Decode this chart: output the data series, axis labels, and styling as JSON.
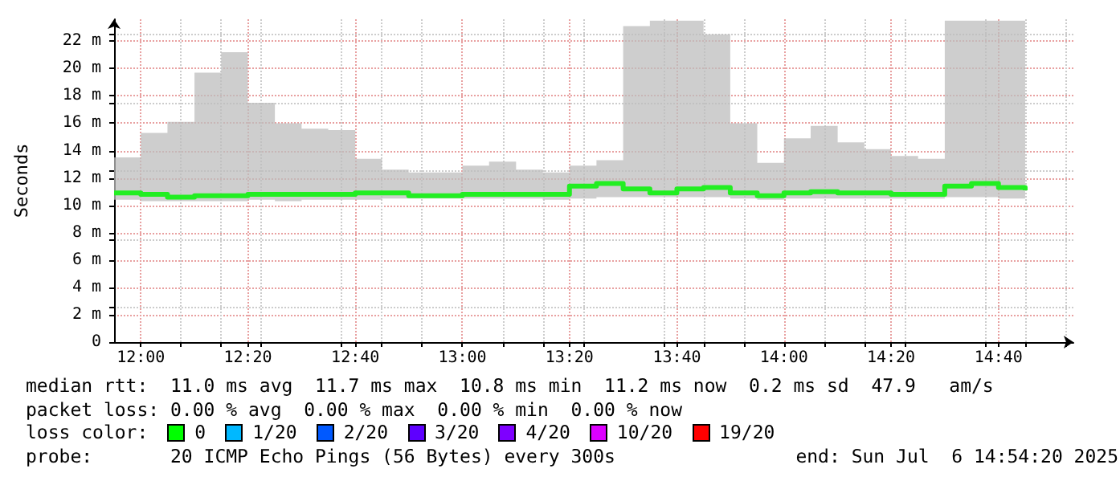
{
  "chart_data": {
    "type": "step",
    "ylabel": "Seconds",
    "x": [
      11.917,
      12.0,
      12.083,
      12.167,
      12.25,
      12.333,
      12.417,
      12.5,
      12.583,
      12.667,
      12.75,
      12.833,
      12.917,
      13.0,
      13.083,
      13.167,
      13.25,
      13.333,
      13.417,
      13.5,
      13.583,
      13.667,
      13.75,
      13.833,
      13.917,
      14.0,
      14.083,
      14.167,
      14.25,
      14.333,
      14.417,
      14.5,
      14.583,
      14.667,
      14.75
    ],
    "series": [
      {
        "color": "#22ee22",
        "values": [
          10.9,
          10.8,
          10.6,
          10.7,
          10.7,
          10.8,
          10.8,
          10.8,
          10.8,
          10.9,
          10.9,
          10.7,
          10.7,
          10.8,
          10.8,
          10.8,
          10.8,
          11.4,
          11.6,
          11.2,
          10.9,
          11.2,
          11.3,
          10.9,
          10.7,
          10.9,
          11.0,
          10.9,
          10.9,
          10.8,
          10.8,
          11.4,
          11.6,
          11.3,
          11.1
        ],
        "lower": [
          10.4,
          10.3,
          10.3,
          10.3,
          10.3,
          10.4,
          10.3,
          10.4,
          10.4,
          10.4,
          10.5,
          10.5,
          10.5,
          10.5,
          10.5,
          10.5,
          10.4,
          10.5,
          10.6,
          10.6,
          10.6,
          10.6,
          10.6,
          10.5,
          10.4,
          10.5,
          10.5,
          10.5,
          10.5,
          10.5,
          10.5,
          10.6,
          10.6,
          10.5,
          10.4
        ],
        "upper": [
          13.5,
          15.3,
          16.1,
          19.7,
          21.2,
          17.5,
          16.0,
          15.6,
          15.5,
          13.4,
          12.6,
          12.4,
          12.4,
          12.9,
          13.2,
          12.6,
          12.4,
          12.9,
          13.3,
          23.1,
          23.5,
          23.5,
          22.5,
          16.0,
          13.1,
          14.9,
          15.8,
          14.6,
          14.1,
          13.6,
          13.4,
          23.5,
          23.5,
          23.5,
          23.5
        ]
      }
    ],
    "xlim": [
      11.917,
      14.9
    ],
    "xticks": [
      {
        "value": 12,
        "label": "12:00"
      },
      {
        "value": 12.333,
        "label": "12:20"
      },
      {
        "value": 12.667,
        "label": "12:40"
      },
      {
        "value": 13,
        "label": "13:00"
      },
      {
        "value": 13.333,
        "label": "13:20"
      },
      {
        "value": 13.667,
        "label": "13:40"
      },
      {
        "value": 14,
        "label": "14:00"
      },
      {
        "value": 14.333,
        "label": "14:20"
      },
      {
        "value": 14.667,
        "label": "14:40"
      }
    ],
    "ylim": [
      0,
      23.6
    ],
    "yticks": [
      {
        "value": 0,
        "label": "0"
      },
      {
        "value": 2,
        "label": "2 m"
      },
      {
        "value": 4,
        "label": "4 m"
      },
      {
        "value": 6,
        "label": "6 m"
      },
      {
        "value": 8,
        "label": "8 m"
      },
      {
        "value": 10,
        "label": "10 m"
      },
      {
        "value": 12,
        "label": "12 m"
      },
      {
        "value": 14,
        "label": "14 m"
      },
      {
        "value": 16,
        "label": "16 m"
      },
      {
        "value": 18,
        "label": "18 m"
      },
      {
        "value": 20,
        "label": "20 m"
      },
      {
        "value": 22,
        "label": "22 m"
      }
    ],
    "grid": true,
    "annotations": [
      "median rtt:  11.0 ms avg  11.7 ms max  10.8 ms min  11.2 ms now  0.2 ms sd  47.9   am/s",
      "packet loss: 0.00 % avg  0.00 % max  0.00 % min  0.00 % now",
      "loss color:",
      "0",
      "1/20",
      "2/20",
      "3/20",
      "4/20",
      "10/20",
      "19/20",
      "probe:       20 ICMP Echo Pings (56 Bytes) every 300s",
      "end: Sun Jul  6 14:54:20 2025"
    ]
  }
}
